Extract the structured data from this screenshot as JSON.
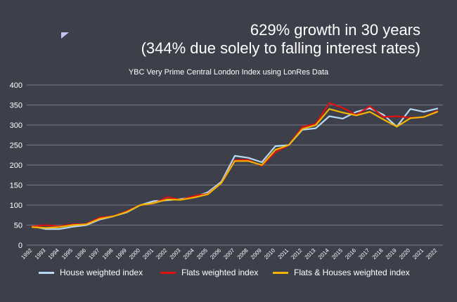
{
  "headline": {
    "line1": "629% growth in 30 years",
    "line2": "(344% due solely to falling interest rates)"
  },
  "colors": {
    "background": "#3d404a",
    "gridline": "#8a8d96",
    "house": "#b7d9f3",
    "flats": "#e01010",
    "combined": "#f2b400",
    "cursor": "#c8c2f2"
  },
  "chart_data": {
    "type": "line",
    "title": "YBC Very Prime Central London Index using LonRes Data",
    "xlabel": "",
    "ylabel": "",
    "ylim": [
      0,
      400
    ],
    "yticks": [
      0,
      50,
      100,
      150,
      200,
      250,
      300,
      350,
      400
    ],
    "grid": true,
    "legend_position": "bottom",
    "x": [
      "1992",
      "1993",
      "1994",
      "1995",
      "1996",
      "1997",
      "1998",
      "1999",
      "2000",
      "2001",
      "2002",
      "2003",
      "2004",
      "2005",
      "2006",
      "2007",
      "2008",
      "2009",
      "2010",
      "2011",
      "2012",
      "2013",
      "2014",
      "2015",
      "2016",
      "2017",
      "2018",
      "2019",
      "2020",
      "2021",
      "2022"
    ],
    "series": [
      {
        "name": "House weighted index",
        "color_key": "house",
        "values": [
          47,
          40,
          40,
          46,
          50,
          64,
          72,
          82,
          100,
          110,
          112,
          115,
          120,
          132,
          158,
          223,
          218,
          207,
          247,
          250,
          288,
          292,
          322,
          316,
          333,
          342,
          326,
          296,
          340,
          333,
          341
        ]
      },
      {
        "name": "Flats weighted index",
        "color_key": "flats",
        "values": [
          47,
          50,
          47,
          52,
          53,
          69,
          72,
          85,
          100,
          104,
          120,
          113,
          123,
          128,
          155,
          212,
          213,
          198,
          232,
          250,
          295,
          303,
          355,
          343,
          325,
          347,
          320,
          322,
          318,
          320,
          335
        ]
      },
      {
        "name": "Flats & Houses weighted index",
        "color_key": "combined",
        "values": [
          45,
          43,
          45,
          50,
          52,
          66,
          72,
          83,
          100,
          105,
          114,
          113,
          119,
          127,
          155,
          210,
          210,
          200,
          238,
          250,
          290,
          300,
          340,
          331,
          324,
          333,
          314,
          296,
          317,
          320,
          333
        ]
      }
    ]
  }
}
